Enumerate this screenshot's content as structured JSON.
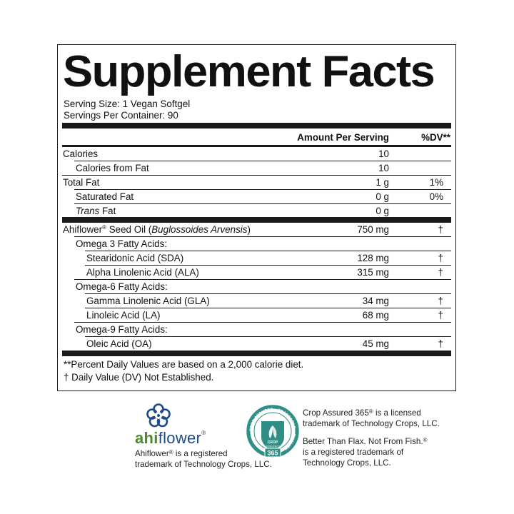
{
  "panel": {
    "title": "Supplement Facts",
    "serving_size": "Serving Size: 1 Vegan Softgel",
    "servings_per_container": "Servings Per Container: 90",
    "header_amount": "Amount Per Serving",
    "header_dv": "%DV**",
    "section1": [
      {
        "label": "Calories",
        "amount": "10",
        "dv": "",
        "indent": 0
      },
      {
        "label": "Calories from Fat",
        "amount": "10",
        "dv": "",
        "indent": 1
      },
      {
        "label": "Total Fat",
        "amount": "1 g",
        "dv": "1%",
        "indent": 0
      },
      {
        "label": "Saturated Fat",
        "amount": "0 g",
        "dv": "0%",
        "indent": 1
      },
      {
        "label_italic": "Trans",
        "label_rest": " Fat",
        "amount": "0 g",
        "dv": "",
        "indent": 1
      }
    ],
    "oil": {
      "name": "Ahiflower",
      "reg": "®",
      "name_rest": " Seed Oil (",
      "latin": "Buglossoides Arvensis",
      "close": ")",
      "amount": "750 mg",
      "dv": "†"
    },
    "section2": [
      {
        "label": "Omega 3 Fatty Acids:",
        "amount": "",
        "dv": "",
        "indent": 1
      },
      {
        "label": "Stearidonic Acid (SDA)",
        "amount": "128 mg",
        "dv": "†",
        "indent": 2
      },
      {
        "label": "Alpha Linolenic Acid (ALA)",
        "amount": "315 mg",
        "dv": "†",
        "indent": 2
      },
      {
        "label": "Omega-6 Fatty Acids:",
        "amount": "",
        "dv": "",
        "indent": 1
      },
      {
        "label": "Gamma Linolenic Acid (GLA)",
        "amount": "34 mg",
        "dv": "†",
        "indent": 2
      },
      {
        "label": "Linoleic Acid (LA)",
        "amount": "68 mg",
        "dv": "†",
        "indent": 2
      },
      {
        "label": "Omega-9 Fatty Acids:",
        "amount": "",
        "dv": "",
        "indent": 1
      },
      {
        "label": "Oleic Acid (OA)",
        "amount": "45 mg",
        "dv": "†",
        "indent": 2
      }
    ],
    "footnote1": "**Percent Daily Values are based on a 2,000 calorie diet.",
    "footnote2": "† Daily Value (DV) Not Established."
  },
  "logos": {
    "ahiflower_ahi": "ahi",
    "ahiflower_flower": "flower",
    "ahiflower_reg": "®",
    "ahiflower_note1_a": "Ahiflower",
    "ahiflower_note1_reg": "®",
    "ahiflower_note1_b": " is a registered",
    "ahiflower_note2": "trademark of Technology Crops, LLC.",
    "crop_badge_top": "CROP",
    "crop_badge_mid": "ASSURED",
    "crop_badge_num": "365",
    "crop_badge_ring": "CROP ASSURED · TRACEABLE · QUALITY",
    "crop_note1_a": "Crop Assured 365",
    "crop_note1_reg": "®",
    "crop_note1_b": " is a licensed",
    "crop_note2": "trademark of Technology Crops, LLC.",
    "btf_note1_a": "Better Than Flax. Not From Fish.",
    "btf_note1_reg": "®",
    "btf_note2": "is a registered trademark of",
    "btf_note3": "Technology Crops, LLC."
  },
  "colors": {
    "ink": "#1a1a1a",
    "ahi_green": "#4a8b2c",
    "ahi_blue": "#1f4a8a",
    "crop_teal": "#2f8f86"
  }
}
